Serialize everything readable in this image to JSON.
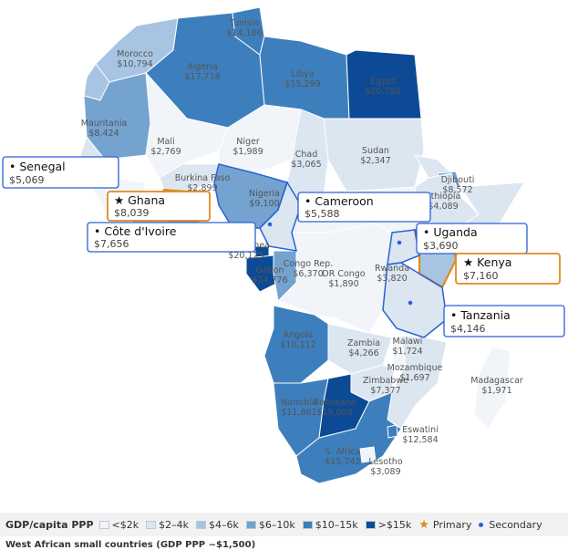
{
  "colors": {
    "c1": "#f1f4f8",
    "c2": "#dbe6f1",
    "c3": "#a7c5e2",
    "c4": "#74a3d0",
    "c5": "#3d7fbd",
    "c6": "#0c4a95",
    "primary": "#e08a1e",
    "secondary": "#2a62d6",
    "ocean": "#ffffff",
    "border": "#ffffff"
  },
  "countries": [
    {
      "name": "Tunisia",
      "value": "$14,186"
    },
    {
      "name": "Morocco",
      "value": "$10,794"
    },
    {
      "name": "Algeria",
      "value": "$17,718"
    },
    {
      "name": "Libya",
      "value": "$15,299"
    },
    {
      "name": "Egypt",
      "value": "$20,780"
    },
    {
      "name": "Mauritania",
      "value": "$8,424"
    },
    {
      "name": "Mali",
      "value": "$2,769"
    },
    {
      "name": "Niger",
      "value": "$1,989"
    },
    {
      "name": "Chad",
      "value": "$3,065"
    },
    {
      "name": "Sudan",
      "value": "$2,347"
    },
    {
      "name": "Burkina Faso",
      "value": "$2,899"
    },
    {
      "name": "Nigeria",
      "value": "$9,100"
    },
    {
      "name": "Djibouti",
      "value": "$8,572"
    },
    {
      "name": "Ethiopia",
      "value": "$4,089"
    },
    {
      "name": "Eq. Guinea",
      "value": "$20,125"
    },
    {
      "name": "Gabon",
      "value": "$24,776"
    },
    {
      "name": "Congo Rep.",
      "value": "$6,370"
    },
    {
      "name": "DR Congo",
      "value": "$1,890"
    },
    {
      "name": "Rwanda",
      "value": "$3,820"
    },
    {
      "name": "Angola",
      "value": "$10,112"
    },
    {
      "name": "Zambia",
      "value": "$4,266"
    },
    {
      "name": "Malawi",
      "value": "$1,724"
    },
    {
      "name": "Mozambique",
      "value": "$1,697"
    },
    {
      "name": "Zimbabwe",
      "value": "$7,377"
    },
    {
      "name": "Madagascar",
      "value": "$1,971"
    },
    {
      "name": "Namibia",
      "value": "$11,861"
    },
    {
      "name": "Botswana",
      "value": "$19,068"
    },
    {
      "name": "Eswatini",
      "value": "$12,584"
    },
    {
      "name": "S. Africa",
      "value": "$15,742"
    },
    {
      "name": "Lesotho",
      "value": "$3,089"
    }
  ],
  "callouts": [
    {
      "name": "• Senegal",
      "value": "$5,069"
    },
    {
      "name": "★ Ghana",
      "value": "$8,039"
    },
    {
      "name": "• Côte d'Ivoire",
      "value": "$7,656"
    },
    {
      "name": "• Cameroon",
      "value": "$5,588"
    },
    {
      "name": "• Uganda",
      "value": "$3,690"
    },
    {
      "name": "★ Kenya",
      "value": "$7,160"
    },
    {
      "name": "• Tanzania",
      "value": "$4,146"
    }
  ],
  "legend": {
    "title": "GDP/capita PPP",
    "bins": [
      "<$2k",
      "$2–4k",
      "$4–6k",
      "$6–10k",
      "$10–15k",
      ">$15k"
    ],
    "primary": "Primary",
    "secondary": "Secondary"
  },
  "footnote": "West African small countries (GDP PPP ~$1,500)"
}
